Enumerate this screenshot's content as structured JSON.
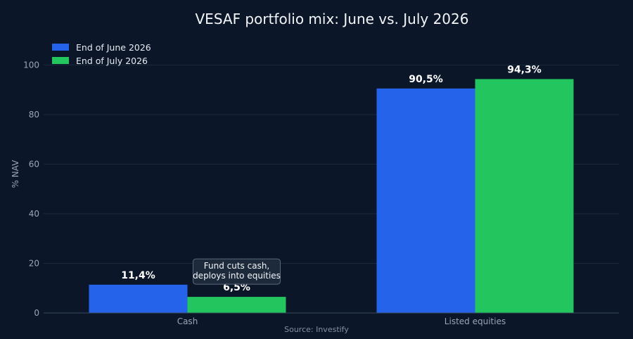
{
  "chart_data": {
    "type": "bar",
    "title": "VESAF portfolio mix: June vs. July 2026",
    "ylabel": "% NAV",
    "xlabel": "",
    "ylim": [
      0,
      112
    ],
    "yticks": [
      0,
      20,
      40,
      60,
      80,
      100
    ],
    "ytick_labels": [
      "0",
      "20",
      "40",
      "60",
      "80",
      "100"
    ],
    "grid": true,
    "legend_position": "top-left",
    "categories": [
      "Cash",
      "Listed equities"
    ],
    "series": [
      {
        "name": "End of June 2026",
        "color": "#2563eb",
        "values": [
          11.4,
          90.5
        ],
        "labels": [
          "11,4%",
          "90,5%"
        ]
      },
      {
        "name": "End of July 2026",
        "color": "#22c55e",
        "values": [
          6.5,
          94.3
        ],
        "labels": [
          "6,5%",
          "94,3%"
        ]
      }
    ],
    "annotations": [
      {
        "text": [
          "Fund cuts cash,",
          "deploys into equities"
        ],
        "category": "Cash",
        "series": 1
      }
    ],
    "source": "Source: Investify"
  }
}
